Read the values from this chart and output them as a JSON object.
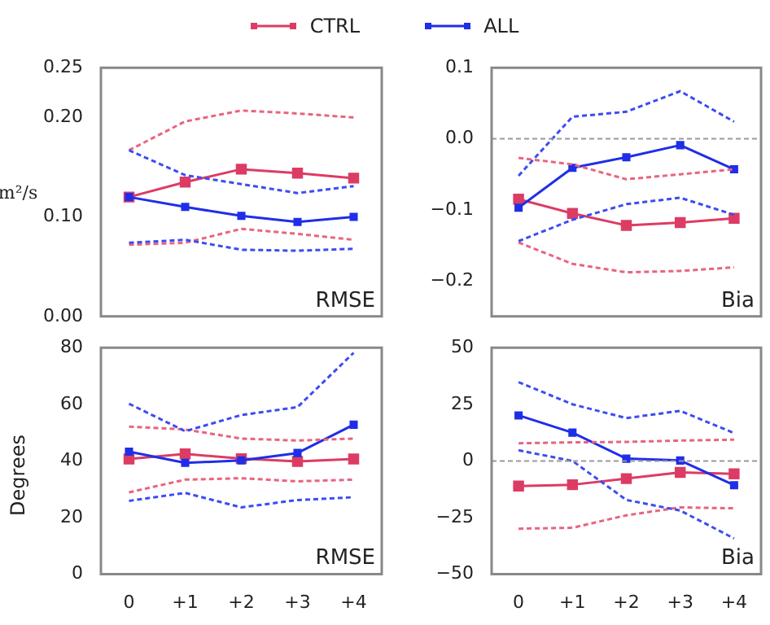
{
  "chart_data": [
    {
      "type": "line",
      "ylabel": "m²/s",
      "categories": [
        "0",
        "+1",
        "+2",
        "+3",
        "+4"
      ],
      "ylim": [
        0,
        0.25
      ],
      "yticks": [
        {
          "value": 0,
          "label": "0.00"
        },
        {
          "value": 0.1,
          "label": "0.10"
        },
        {
          "value": 0.2,
          "label": "0.20"
        },
        {
          "value": 0.25,
          "label": "0.25"
        }
      ],
      "tick_labels": "y",
      "grid": false,
      "legend": "top",
      "annotations": [
        "RMSE"
      ],
      "series": [
        {
          "name": "CTRL",
          "color": "#dc3c64",
          "marker": "square",
          "line_style": "solid",
          "values": [
            0.12,
            0.135,
            0.148,
            0.144,
            0.139
          ]
        },
        {
          "name": "ALL",
          "color": "#1f2ee8",
          "marker": "square",
          "line_style": "solid",
          "values": [
            0.12,
            0.11,
            0.101,
            0.095,
            0.1
          ]
        },
        {
          "color": "#e8647f",
          "marker": "none",
          "line_style": "dashed",
          "values": [
            0.167,
            0.196,
            0.207,
            0.204,
            0.2
          ]
        },
        {
          "color": "#e8647f",
          "marker": "none",
          "line_style": "dashed",
          "values": [
            0.072,
            0.074,
            0.088,
            0.083,
            0.077
          ]
        },
        {
          "color": "#3d4cf0",
          "marker": "none",
          "line_style": "dashed",
          "values": [
            0.167,
            0.142,
            0.133,
            0.124,
            0.131
          ]
        },
        {
          "color": "#3d4cf0",
          "marker": "none",
          "line_style": "dashed",
          "values": [
            0.074,
            0.077,
            0.067,
            0.066,
            0.068
          ]
        }
      ]
    },
    {
      "type": "line",
      "categories": [
        "0",
        "+1",
        "+2",
        "+3",
        "+4"
      ],
      "ylim": [
        -0.25,
        0.1
      ],
      "yticks": [
        {
          "value": -0.2,
          "label": "−0.2"
        },
        {
          "value": -0.1,
          "label": "−0.1"
        },
        {
          "value": 0,
          "label": "0.0"
        },
        {
          "value": 0.1,
          "label": "0.1"
        }
      ],
      "tick_labels": "y",
      "grid": false,
      "annotations": [
        "Bia"
      ],
      "ref_lines": [
        {
          "axis": "y",
          "value": 0,
          "color": "#999999",
          "line_style": "dashed"
        }
      ],
      "series": [
        {
          "color": "#dc3c64",
          "marker": "square",
          "line_style": "solid",
          "values": [
            -0.085,
            -0.105,
            -0.122,
            -0.118,
            -0.112
          ]
        },
        {
          "color": "#1f2ee8",
          "marker": "square",
          "line_style": "solid",
          "values": [
            -0.097,
            -0.041,
            -0.026,
            -0.009,
            -0.043
          ]
        },
        {
          "color": "#e8647f",
          "marker": "none",
          "line_style": "dashed",
          "values": [
            -0.027,
            -0.036,
            -0.057,
            -0.05,
            -0.043
          ]
        },
        {
          "color": "#e8647f",
          "marker": "none",
          "line_style": "dashed",
          "values": [
            -0.146,
            -0.176,
            -0.188,
            -0.186,
            -0.181
          ]
        },
        {
          "color": "#3d4cf0",
          "marker": "none",
          "line_style": "dashed",
          "values": [
            -0.052,
            0.031,
            0.038,
            0.067,
            0.024
          ]
        },
        {
          "color": "#3d4cf0",
          "marker": "none",
          "line_style": "dashed",
          "values": [
            -0.144,
            -0.114,
            -0.092,
            -0.083,
            -0.107
          ]
        }
      ]
    },
    {
      "type": "line",
      "ylabel": "Degrees",
      "categories": [
        "0",
        "+1",
        "+2",
        "+3",
        "+4"
      ],
      "ylim": [
        0,
        80
      ],
      "yticks": [
        0,
        20,
        40,
        60,
        80
      ],
      "grid": false,
      "annotations": [
        "RMSE"
      ],
      "series": [
        {
          "color": "#dc3c64",
          "marker": "square",
          "line_style": "solid",
          "values": [
            40.7,
            42.5,
            40.8,
            39.8,
            40.7
          ]
        },
        {
          "color": "#1f2ee8",
          "marker": "square",
          "line_style": "solid",
          "values": [
            43.3,
            39.3,
            40.2,
            42.8,
            52.8
          ]
        },
        {
          "color": "#e8647f",
          "marker": "none",
          "line_style": "dashed",
          "values": [
            52.1,
            51.1,
            47.9,
            47.2,
            47.9
          ]
        },
        {
          "color": "#e8647f",
          "marker": "none",
          "line_style": "dashed",
          "values": [
            28.9,
            33.4,
            33.9,
            32.8,
            33.4
          ]
        },
        {
          "color": "#3d4cf0",
          "marker": "none",
          "line_style": "dashed",
          "values": [
            60.2,
            50.5,
            56.2,
            59,
            78.2
          ]
        },
        {
          "color": "#3d4cf0",
          "marker": "none",
          "line_style": "dashed",
          "values": [
            25.9,
            28.7,
            23.6,
            26.2,
            27.2
          ]
        }
      ]
    },
    {
      "type": "line",
      "categories": [
        "0",
        "+1",
        "+2",
        "+3",
        "+4"
      ],
      "ylim": [
        -50,
        50
      ],
      "yticks": [
        {
          "value": -50,
          "label": "−50"
        },
        {
          "value": -25,
          "label": "−25"
        },
        0,
        25,
        50
      ],
      "grid": false,
      "annotations": [
        "Bia"
      ],
      "ref_lines": [
        {
          "axis": "y",
          "value": 0,
          "color": "#999999",
          "line_style": "dashed"
        }
      ],
      "series": [
        {
          "color": "#dc3c64",
          "marker": "square",
          "line_style": "solid",
          "values": [
            -11.1,
            -10.5,
            -7.8,
            -5.1,
            -5.7
          ]
        },
        {
          "color": "#1f2ee8",
          "marker": "square",
          "line_style": "solid",
          "values": [
            20.1,
            12.5,
            1,
            0.2,
            -10.7
          ]
        },
        {
          "color": "#e8647f",
          "marker": "none",
          "line_style": "dashed",
          "values": [
            7.8,
            8.2,
            8.4,
            9,
            9.4
          ]
        },
        {
          "color": "#e8647f",
          "marker": "none",
          "line_style": "dashed",
          "values": [
            -29.9,
            -29.5,
            -24,
            -20.5,
            -20.9
          ]
        },
        {
          "color": "#3d4cf0",
          "marker": "none",
          "line_style": "dashed",
          "values": [
            34.8,
            25,
            18.9,
            22.1,
            12.3
          ]
        },
        {
          "color": "#3d4cf0",
          "marker": "none",
          "line_style": "dashed",
          "values": [
            4.7,
            0,
            -17.2,
            -21.9,
            -34.2
          ]
        }
      ]
    }
  ]
}
